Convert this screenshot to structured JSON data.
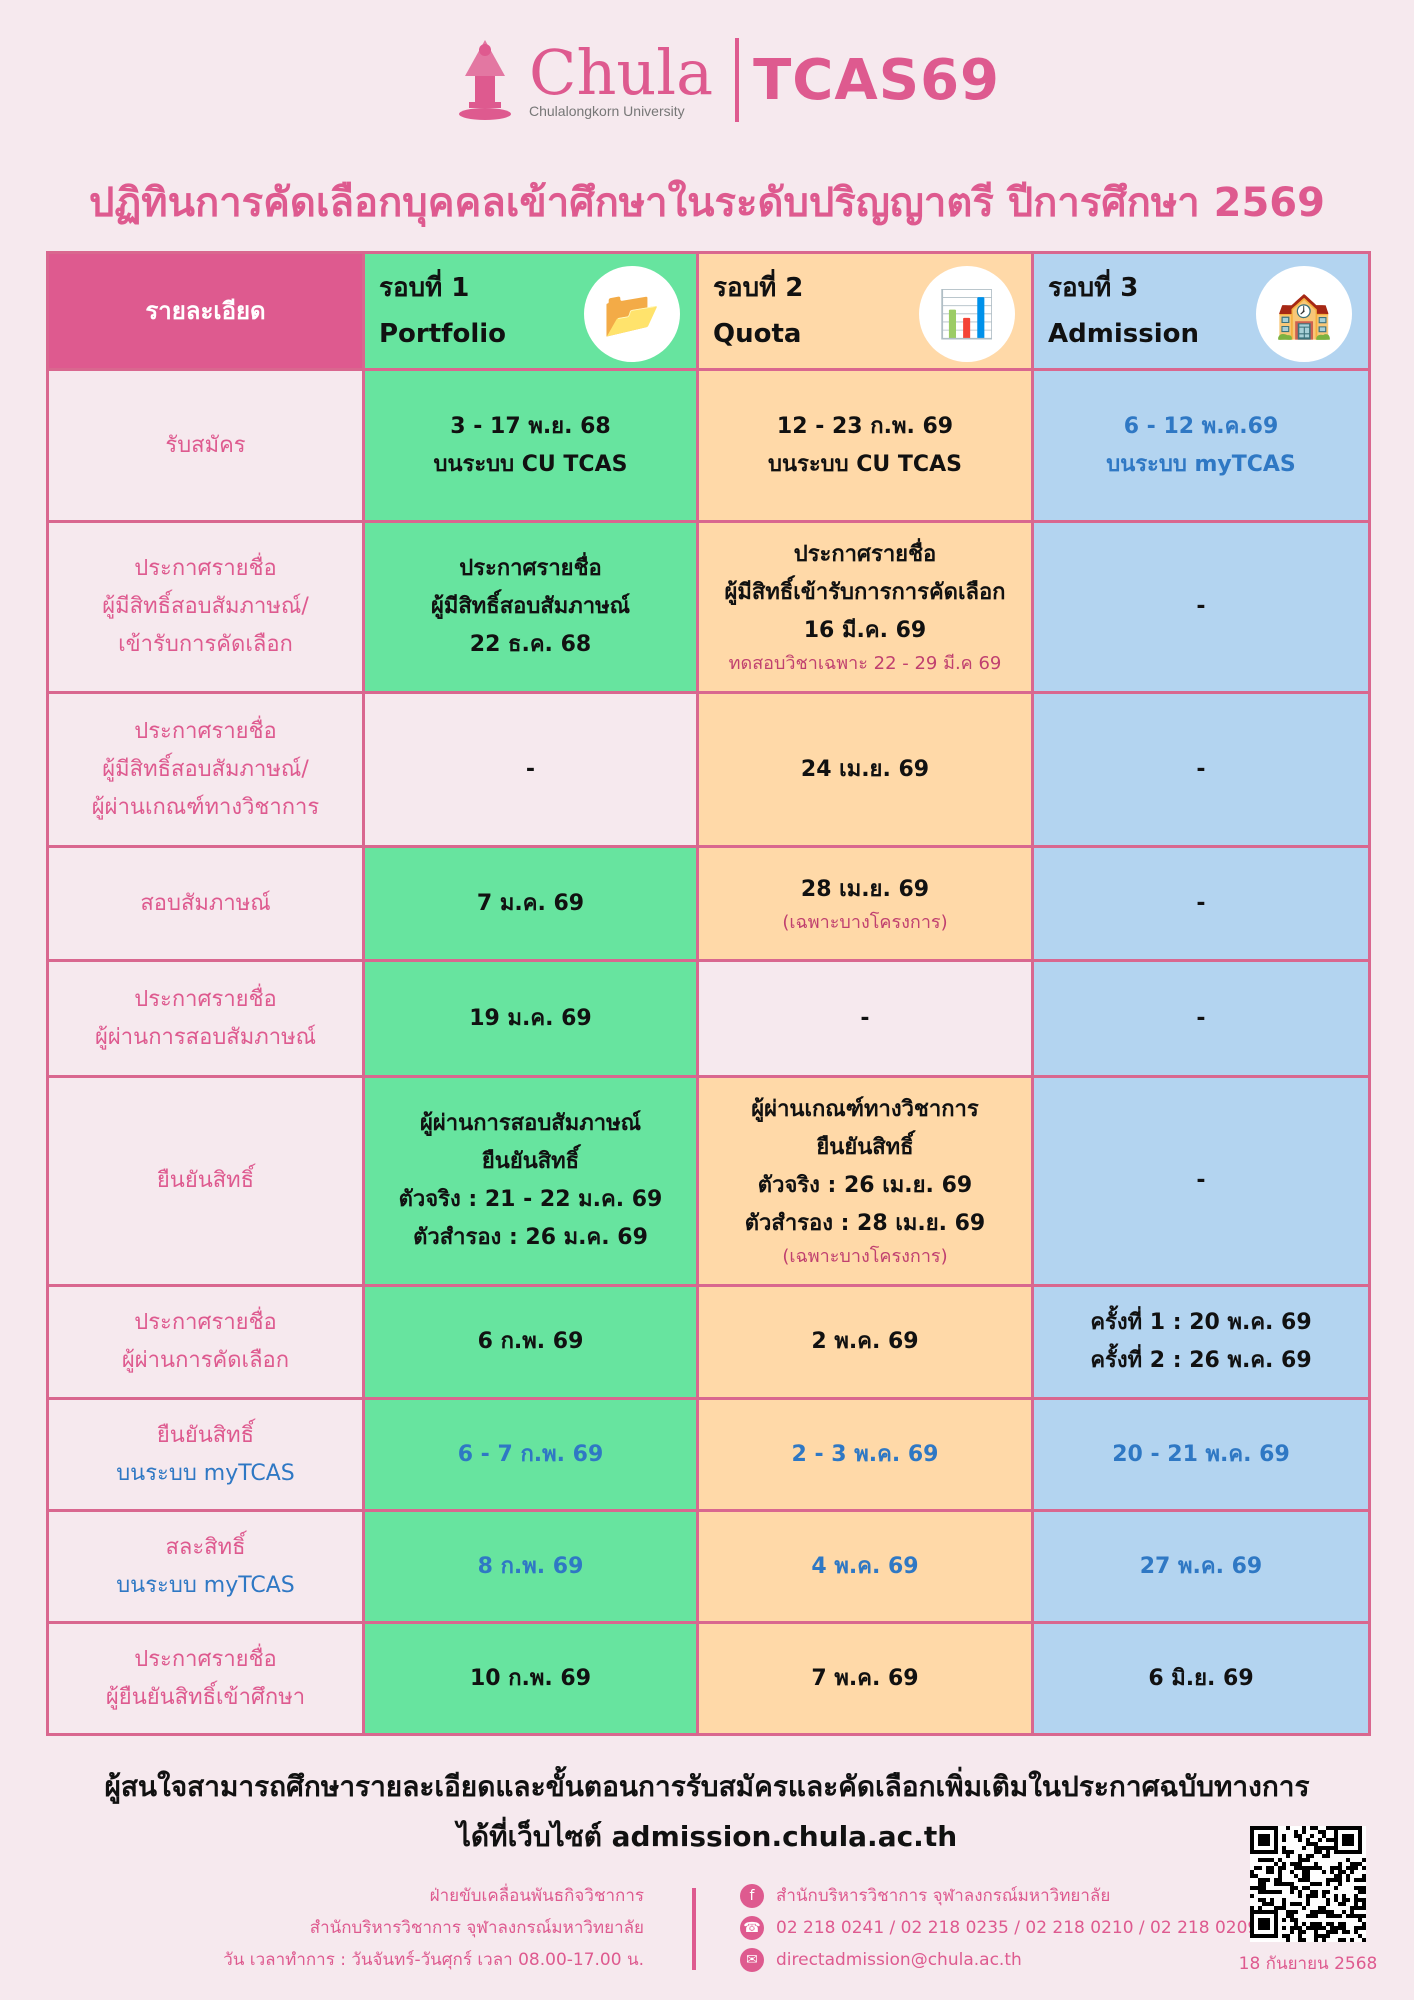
{
  "logo": {
    "wordmark": "Chula",
    "subtitle": "Chulalongkorn University",
    "program": "TCAS69"
  },
  "title": "ปฏิทินการคัดเลือกบุคคลเข้าศึกษาในระดับปริญญาตรี ปีการศึกษา 2569",
  "colors": {
    "round1": "#67e49f",
    "round2": "#ffd9a8",
    "round3": "#b3d4f0",
    "accent": "#de5a8f",
    "link_blue": "#2f78c4"
  },
  "table": {
    "header_label": "รายละเอียด",
    "rounds": [
      {
        "round": "รอบที่ 1",
        "name": "Portfolio",
        "icon": "folder-icon"
      },
      {
        "round": "รอบที่ 2",
        "name": "Quota",
        "icon": "pie-chart-hand-icon"
      },
      {
        "round": "รอบที่ 3",
        "name": "Admission",
        "icon": "school-building-icon"
      }
    ],
    "rows": [
      {
        "label": [
          "รับสมัคร"
        ],
        "cells": [
          [
            {
              "t": "3 - 17 พ.ย. 68"
            },
            {
              "t": "บนระบบ CU TCAS"
            }
          ],
          [
            {
              "t": "12 - 23 ก.พ. 69"
            },
            {
              "t": "บนระบบ CU TCAS"
            }
          ],
          [
            {
              "t": "6 - 12 พ.ค.69",
              "s": "blue"
            },
            {
              "t": "บนระบบ myTCAS",
              "s": "blue"
            }
          ]
        ]
      },
      {
        "label": [
          "ประกาศรายชื่อ",
          "ผู้มีสิทธิ์สอบสัมภาษณ์/",
          "เข้ารับการคัดเลือก"
        ],
        "cells": [
          [
            {
              "t": "ประกาศรายชื่อ"
            },
            {
              "t": "ผู้มีสิทธิ์สอบสัมภาษณ์"
            },
            {
              "t": "22 ธ.ค. 68"
            }
          ],
          [
            {
              "t": "ประกาศรายชื่อ"
            },
            {
              "t": "ผู้มีสิทธิ์เข้ารับการการคัดเลือก"
            },
            {
              "t": "16 มี.ค. 69"
            },
            {
              "t": "ทดสอบวิชาเฉพาะ 22 - 29 มี.ค 69",
              "s": "note"
            }
          ],
          [
            {
              "t": "-"
            }
          ]
        ]
      },
      {
        "label": [
          "ประกาศรายชื่อ",
          "ผู้มีสิทธิ์สอบสัมภาษณ์/",
          "ผู้ผ่านเกณฑ์ทางวิชาการ"
        ],
        "cells": [
          [
            {
              "t": "-"
            }
          ],
          [
            {
              "t": "24 เม.ย. 69"
            }
          ],
          [
            {
              "t": "-"
            }
          ]
        ],
        "empty": [
          0
        ]
      },
      {
        "label": [
          "สอบสัมภาษณ์"
        ],
        "cells": [
          [
            {
              "t": "7 ม.ค. 69"
            }
          ],
          [
            {
              "t": "28 เม.ย. 69"
            },
            {
              "t": "(เฉพาะบางโครงการ)",
              "s": "note"
            }
          ],
          [
            {
              "t": "-"
            }
          ]
        ]
      },
      {
        "label": [
          "ประกาศรายชื่อ",
          "ผู้ผ่านการสอบสัมภาษณ์"
        ],
        "cells": [
          [
            {
              "t": "19 ม.ค. 69"
            }
          ],
          [
            {
              "t": "-"
            }
          ],
          [
            {
              "t": "-"
            }
          ]
        ],
        "empty": [
          1
        ]
      },
      {
        "label": [
          "ยืนยันสิทธิ์"
        ],
        "cells": [
          [
            {
              "t": "ผู้ผ่านการสอบสัมภาษณ์"
            },
            {
              "t": "ยืนยันสิทธิ์"
            },
            {
              "t": "ตัวจริง : 21 - 22 ม.ค. 69"
            },
            {
              "t": "ตัวสำรอง : 26 ม.ค. 69"
            }
          ],
          [
            {
              "t": "ผู้ผ่านเกณฑ์ทางวิชาการ"
            },
            {
              "t": "ยืนยันสิทธิ์"
            },
            {
              "t": "ตัวจริง : 26 เม.ย. 69"
            },
            {
              "t": "ตัวสำรอง : 28 เม.ย. 69"
            },
            {
              "t": "(เฉพาะบางโครงการ)",
              "s": "note"
            }
          ],
          [
            {
              "t": "-"
            }
          ]
        ]
      },
      {
        "label": [
          "ประกาศรายชื่อ",
          "ผู้ผ่านการคัดเลือก"
        ],
        "cells": [
          [
            {
              "t": "6 ก.พ. 69"
            }
          ],
          [
            {
              "t": "2 พ.ค. 69"
            }
          ],
          [
            {
              "t": "ครั้งที่ 1 : 20 พ.ค. 69"
            },
            {
              "t": "ครั้งที่ 2 : 26 พ.ค. 69"
            }
          ]
        ]
      },
      {
        "label": [
          "ยืนยันสิทธิ์",
          "บนระบบ myTCAS"
        ],
        "label_blue": [
          1
        ],
        "cells": [
          [
            {
              "t": "6 - 7 ก.พ. 69",
              "s": "blue"
            }
          ],
          [
            {
              "t": "2 - 3 พ.ค. 69",
              "s": "blue"
            }
          ],
          [
            {
              "t": "20 - 21 พ.ค. 69",
              "s": "blue"
            }
          ]
        ]
      },
      {
        "label": [
          "สละสิทธิ์",
          "บนระบบ myTCAS"
        ],
        "label_blue": [
          1
        ],
        "cells": [
          [
            {
              "t": "8 ก.พ. 69",
              "s": "blue"
            }
          ],
          [
            {
              "t": "4 พ.ค. 69",
              "s": "blue"
            }
          ],
          [
            {
              "t": "27 พ.ค. 69",
              "s": "blue"
            }
          ]
        ]
      },
      {
        "label": [
          "ประกาศรายชื่อ",
          "ผู้ยืนยันสิทธิ์เข้าศึกษา"
        ],
        "cells": [
          [
            {
              "t": "10 ก.พ. 69"
            }
          ],
          [
            {
              "t": "7 พ.ค. 69"
            }
          ],
          [
            {
              "t": "6 มิ.ย. 69"
            }
          ]
        ]
      }
    ]
  },
  "footer": {
    "line1": "ผู้สนใจสามารถศึกษารายละเอียดและขั้นตอนการรับสมัครและคัดเลือกเพิ่มเติมในประกาศฉบับทางการ",
    "line2": "ได้ที่เว็บไซต์ admission.chula.ac.th",
    "office": [
      "ฝ่ายขับเคลื่อนพันธกิจวิชาการ",
      "สำนักบริหารวิชาการ จุฬาลงกรณ์มหาวิทยาลัย",
      "วัน เวลาทำการ : วันจันทร์-วันศุกร์ เวลา 08.00-17.00 น."
    ],
    "facebook": "สำนักบริหารวิชาการ จุฬาลงกรณ์มหาวิทยาลัย",
    "phone": "02 218 0241 / 02 218 0235 / 02 218 0210 / 02 218 0209",
    "email": "directadmission@chula.ac.th",
    "date": "18 กันยายน 2568"
  }
}
